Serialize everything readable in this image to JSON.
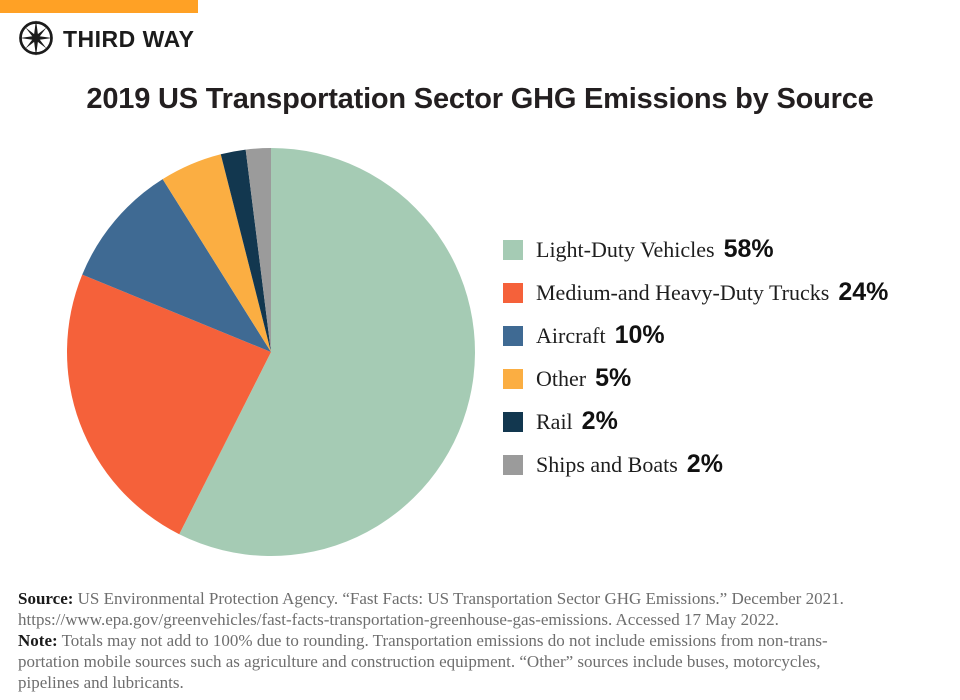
{
  "brand": {
    "name": "THIRD WAY",
    "topbar_color": "#FFA125",
    "logo_color": "#1b1b1b"
  },
  "title": "2019 US Transportation Sector GHG Emissions by Source",
  "chart_data": {
    "type": "pie",
    "title": "2019 US Transportation Sector GHG Emissions by Source",
    "start_angle_deg": 0,
    "direction": "clockwise",
    "legend_position": "right",
    "slices": [
      {
        "label": "Light-Duty Vehicles",
        "value": 58,
        "pct_label": "58%",
        "color": "#A5CBB4"
      },
      {
        "label": "Medium-and Heavy-Duty Trucks",
        "value": 24,
        "pct_label": "24%",
        "color": "#F5613A"
      },
      {
        "label": "Aircraft",
        "value": 10,
        "pct_label": "10%",
        "color": "#3F6A93"
      },
      {
        "label": "Other",
        "value": 5,
        "pct_label": "5%",
        "color": "#FBAE42"
      },
      {
        "label": "Rail",
        "value": 2,
        "pct_label": "2%",
        "color": "#12374F"
      },
      {
        "label": "Ships and Boats",
        "value": 2,
        "pct_label": "2%",
        "color": "#9B9B9B"
      }
    ]
  },
  "footer": {
    "lines": [
      {
        "bold": "Source:",
        "text": " US Environmental Protection Agency. “Fast Facts: US Transportation Sector GHG Emissions.” December 2021."
      },
      {
        "bold": "",
        "text": "https://www.epa.gov/greenvehicles/fast-facts-transportation-greenhouse-gas-emissions. Accessed 17 May 2022."
      },
      {
        "bold": "Note:",
        "text": " Totals may not add to 100% due to rounding. Transportation emissions do not include emissions from non-trans-"
      },
      {
        "bold": "",
        "text": "portation mobile sources such as agriculture and construction equipment. “Other” sources include buses, motorcycles,"
      },
      {
        "bold": "",
        "text": "pipelines and lubricants."
      }
    ]
  }
}
